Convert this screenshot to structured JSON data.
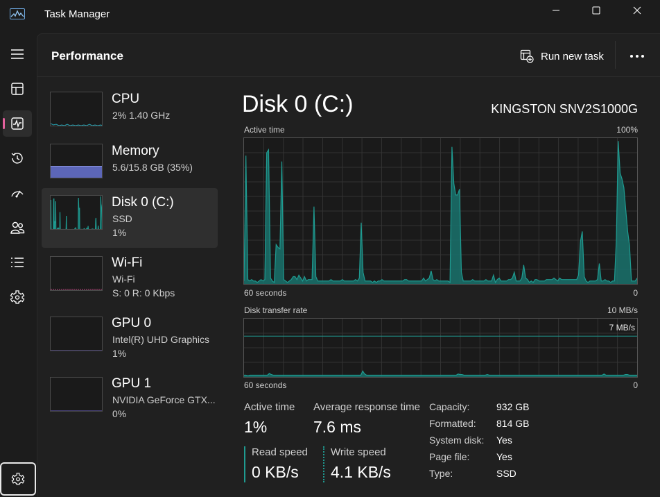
{
  "app": {
    "title": "Task Manager"
  },
  "nav": {
    "items": [
      {
        "name": "menu",
        "icon": "hamburger-icon"
      },
      {
        "name": "processes",
        "icon": "processes-icon"
      },
      {
        "name": "performance",
        "icon": "performance-icon",
        "active": true
      },
      {
        "name": "app-history",
        "icon": "history-icon"
      },
      {
        "name": "startup-apps",
        "icon": "startup-icon"
      },
      {
        "name": "users",
        "icon": "users-icon"
      },
      {
        "name": "details",
        "icon": "details-icon"
      },
      {
        "name": "services",
        "icon": "services-icon"
      },
      {
        "name": "settings",
        "icon": "gear-icon"
      }
    ]
  },
  "header": {
    "title": "Performance",
    "run_task": "Run new task"
  },
  "resources": [
    {
      "name": "CPU",
      "line1": "2%  1.40 GHz",
      "line2": ""
    },
    {
      "name": "Memory",
      "line1": "5.6/15.8 GB (35%)",
      "line2": ""
    },
    {
      "name": "Disk 0 (C:)",
      "line1": "SSD",
      "line2": "1%"
    },
    {
      "name": "Wi-Fi",
      "line1": "Wi-Fi",
      "line2": "S: 0  R: 0 Kbps"
    },
    {
      "name": "GPU 0",
      "line1": "Intel(R) UHD Graphics",
      "line2": "1%"
    },
    {
      "name": "GPU 1",
      "line1": "NVIDIA GeForce GTX...",
      "line2": "0%"
    }
  ],
  "detail": {
    "title": "Disk 0 (C:)",
    "model": "KINGSTON SNV2S1000G",
    "graph1": {
      "label": "Active time",
      "max_label": "100%",
      "x_left": "60 seconds",
      "x_right": "0",
      "ylim": [
        0,
        100
      ],
      "values": [
        2,
        88,
        3,
        2,
        3,
        2,
        2,
        1,
        2,
        3,
        2,
        3,
        90,
        92,
        4,
        2,
        1,
        27,
        25,
        24,
        84,
        3,
        2,
        1,
        2,
        3,
        5,
        5,
        3,
        6,
        4,
        2,
        5,
        2,
        3,
        3,
        3,
        53,
        5,
        2,
        2,
        2,
        2,
        2,
        2,
        2,
        3,
        2,
        2,
        2,
        2,
        2,
        3,
        2,
        2,
        2,
        2,
        2,
        2,
        3,
        2,
        4,
        42,
        8,
        2,
        2,
        2,
        2,
        1,
        2,
        1,
        2,
        2,
        3,
        2,
        2,
        2,
        2,
        2,
        2,
        2,
        2,
        2,
        2,
        2,
        3,
        3,
        2,
        2,
        2,
        2,
        2,
        2,
        2,
        2,
        4,
        2,
        3,
        4,
        9,
        3,
        2,
        3,
        2,
        2,
        2,
        2,
        2,
        2,
        1,
        94,
        69,
        61,
        61,
        65,
        8,
        2,
        2,
        2,
        2,
        2,
        3,
        2,
        2,
        2,
        2,
        2,
        2,
        3,
        2,
        2,
        2,
        6,
        1,
        3,
        4,
        2,
        2,
        2,
        2,
        3,
        3,
        4,
        8,
        2,
        2,
        2,
        4,
        13,
        4,
        3,
        1,
        2,
        1,
        3,
        3,
        2,
        2,
        2,
        2,
        3,
        3,
        3,
        3,
        4,
        3,
        2,
        4,
        3,
        3,
        3,
        3,
        3,
        3,
        3,
        3,
        3,
        6,
        29,
        36,
        5,
        2,
        1,
        2,
        2,
        2,
        2,
        3,
        14,
        2,
        2,
        3,
        2,
        2,
        1,
        2,
        2,
        30,
        98,
        76,
        72,
        66,
        51,
        36,
        26,
        2,
        2,
        2,
        4
      ]
    },
    "graph2": {
      "label": "Disk transfer rate",
      "max_label": "10 MB/s",
      "ref_label": "7 MB/s",
      "x_left": "60 seconds",
      "x_right": "0",
      "ylim": [
        0,
        10
      ],
      "ref_value": 7,
      "values": [
        0.3,
        0.3,
        0.2,
        0.3,
        0.3,
        0.3,
        0.3,
        0.3,
        0.3,
        0.3,
        0.3,
        0.3,
        0.3,
        0.6,
        0.4,
        0.3,
        0.3,
        0.3,
        0.3,
        0.3,
        0.3,
        0.3,
        0.3,
        0.3,
        0.3,
        0.3,
        0.3,
        0.3,
        0.3,
        0.3,
        0.3,
        0.3,
        0.3,
        0.3,
        0.3,
        0.3,
        0.3,
        0.3,
        0.3,
        0.3,
        0.3,
        0.3,
        0.3,
        0.3,
        0.3,
        0.3,
        0.3,
        0.3,
        0.3,
        0.3,
        0.3,
        0.3,
        0.3,
        0.3,
        0.3,
        0.3,
        0.3,
        0.3,
        0.3,
        0.3,
        0.3,
        1.0,
        0.5,
        0.3,
        0.3,
        0.3,
        0.3,
        0.3,
        0.3,
        0.3,
        0.3,
        0.3,
        0.3,
        0.3,
        0.3,
        0.3,
        0.3,
        0.3,
        0.3,
        0.3,
        0.3,
        0.3,
        0.3,
        0.3,
        0.3,
        0.3,
        0.3,
        0.3,
        0.3,
        0.3,
        0.3,
        0.3,
        0.3,
        0.3,
        0.3,
        0.3,
        0.3,
        0.3,
        0.3,
        0.3,
        0.3,
        0.3,
        0.3,
        0.3,
        0.3,
        0.3,
        0.3,
        0.3,
        0.3,
        0.3,
        0.5,
        0.4,
        0.4,
        0.3,
        0.3,
        0.3,
        0.3,
        0.3,
        0.3,
        0.3,
        0.3,
        0.3,
        0.3,
        0.3,
        0.3,
        0.4,
        0.3,
        0.3,
        0.3,
        0.3,
        0.3,
        0.3,
        0.3,
        0.3,
        0.3,
        0.3,
        0.3,
        0.3,
        0.3,
        0.3,
        0.3,
        0.3,
        0.3,
        0.3,
        0.3,
        0.3,
        0.3,
        0.3,
        0.3,
        0.3,
        0.3,
        0.3,
        0.3,
        0.3,
        0.3,
        0.3,
        0.3,
        0.3,
        0.3,
        0.3,
        0.3,
        0.3,
        0.3,
        0.3,
        0.3,
        0.3,
        0.3,
        0.3,
        0.3,
        0.3,
        0.3,
        0.3,
        0.3,
        0.3,
        0.3,
        0.3,
        0.3,
        0.3,
        0.3,
        0.3,
        0.3,
        0.3,
        0.3,
        0.3,
        0.3,
        0.5,
        0.3,
        0.3,
        0.3,
        0.3,
        0.3,
        0.3,
        0.3,
        0.3,
        0.3,
        0.3,
        0.4,
        0.4,
        0.3,
        0.3,
        0.3,
        0.3,
        0.3
      ]
    },
    "stats": {
      "active_time_label": "Active time",
      "active_time": "1%",
      "avg_resp_label": "Average response time",
      "avg_resp": "7.6 ms",
      "read_label": "Read speed",
      "read": "0 KB/s",
      "write_label": "Write speed",
      "write": "4.1 KB/s"
    },
    "props": [
      {
        "label": "Capacity:",
        "value": "932 GB"
      },
      {
        "label": "Formatted:",
        "value": "814 GB"
      },
      {
        "label": "System disk:",
        "value": "Yes"
      },
      {
        "label": "Page file:",
        "value": "Yes"
      },
      {
        "label": "Type:",
        "value": "SSD"
      }
    ]
  },
  "colors": {
    "accent": "#e3619d",
    "disk": "#1f9b91",
    "disk_fill": "#1a6e68",
    "memory": "#6470c8",
    "line": "#b84a80"
  }
}
